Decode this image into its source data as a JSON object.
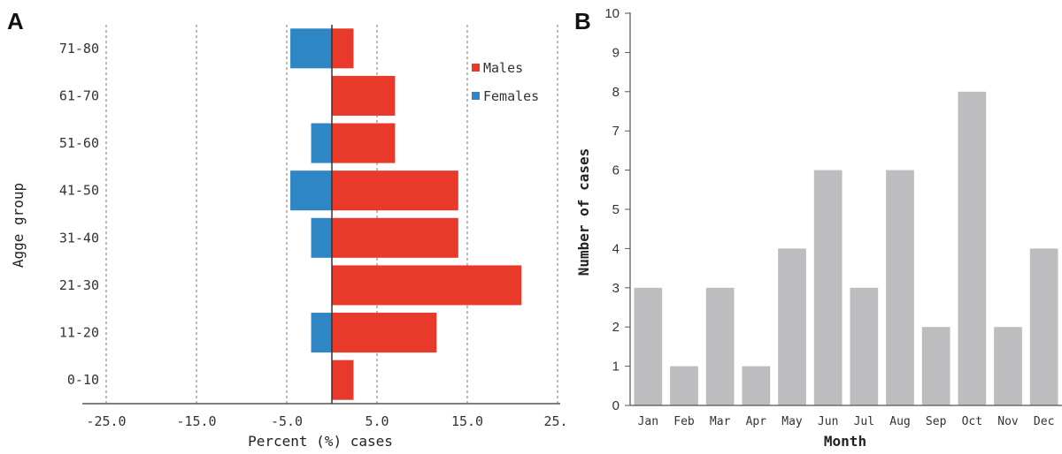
{
  "chart_data": [
    {
      "panel_label": "A",
      "type": "bar",
      "orientation": "horizontal",
      "categories": [
        "0-10",
        "11-20",
        "21-30",
        "31-40",
        "41-50",
        "51-60",
        "61-70",
        "71-80"
      ],
      "series": [
        {
          "name": "Males",
          "color": "#e8392b",
          "values": [
            2.4,
            11.6,
            21.0,
            14.0,
            14.0,
            7.0,
            7.0,
            2.4
          ]
        },
        {
          "name": "Females",
          "color": "#2e86c4",
          "values": [
            0,
            -2.3,
            0,
            -2.3,
            -4.6,
            -2.3,
            0,
            -4.6
          ]
        }
      ],
      "xticks": [
        "-25.0",
        "-15.0",
        "-5.0",
        "5.0",
        "15.0",
        "25."
      ],
      "xtick_values": [
        -25,
        -15,
        -5,
        5,
        15,
        25
      ],
      "xlabel": "Percent (%) cases",
      "ylabel": "Agge group",
      "xlim": [
        -25,
        25
      ],
      "grid": "vertical dashed",
      "legend_position": "top-right"
    },
    {
      "panel_label": "B",
      "type": "bar",
      "categories": [
        "Jan",
        "Feb",
        "Mar",
        "Apr",
        "May",
        "Jun",
        "Jul",
        "Aug",
        "Sep",
        "Oct",
        "Nov",
        "Dec"
      ],
      "values": [
        3,
        1,
        3,
        1,
        4,
        6,
        3,
        6,
        2,
        8,
        2,
        4
      ],
      "color": "#bdbdbf",
      "xlabel": "Month",
      "ylabel": "Number of cases",
      "ylim": [
        0,
        10
      ],
      "yticks": [
        "0",
        "1",
        "2",
        "3",
        "4",
        "5",
        "6",
        "7",
        "8",
        "9",
        "10"
      ]
    }
  ]
}
